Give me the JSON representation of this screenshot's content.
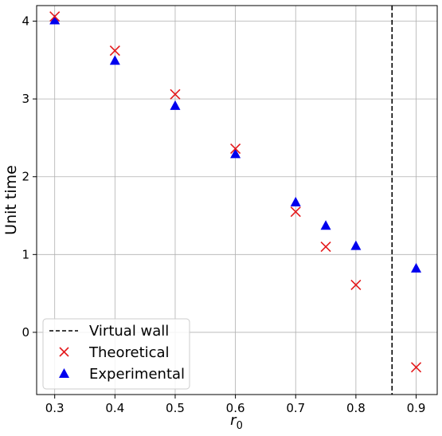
{
  "chart_data": {
    "type": "scatter",
    "xlabel_main": "r",
    "xlabel_sub": "0",
    "ylabel": "Unit time",
    "xlim": [
      0.27,
      0.935
    ],
    "ylim": [
      -0.8,
      4.2
    ],
    "xticks": [
      "0.3",
      "0.4",
      "0.5",
      "0.6",
      "0.7",
      "0.8",
      "0.9"
    ],
    "yticks": [
      "0",
      "1",
      "2",
      "3",
      "4"
    ],
    "grid": true,
    "legend_position": "lower-left",
    "vline": {
      "name": "Virtual wall",
      "x": 0.86,
      "style": "dashed",
      "color": "#000000"
    },
    "series": [
      {
        "name": "Theoretical",
        "marker": "x",
        "color": "#e41a1c",
        "x": [
          0.3,
          0.4,
          0.5,
          0.6,
          0.7,
          0.75,
          0.8,
          0.9
        ],
        "y": [
          4.06,
          3.62,
          3.06,
          2.36,
          1.55,
          1.1,
          0.61,
          -0.45
        ]
      },
      {
        "name": "Experimental",
        "marker": "triangle",
        "color": "#0000ee",
        "x": [
          0.3,
          0.4,
          0.5,
          0.6,
          0.7,
          0.75,
          0.8,
          0.9
        ],
        "y": [
          4.01,
          3.49,
          2.91,
          2.29,
          1.67,
          1.37,
          1.11,
          0.82
        ]
      }
    ]
  }
}
